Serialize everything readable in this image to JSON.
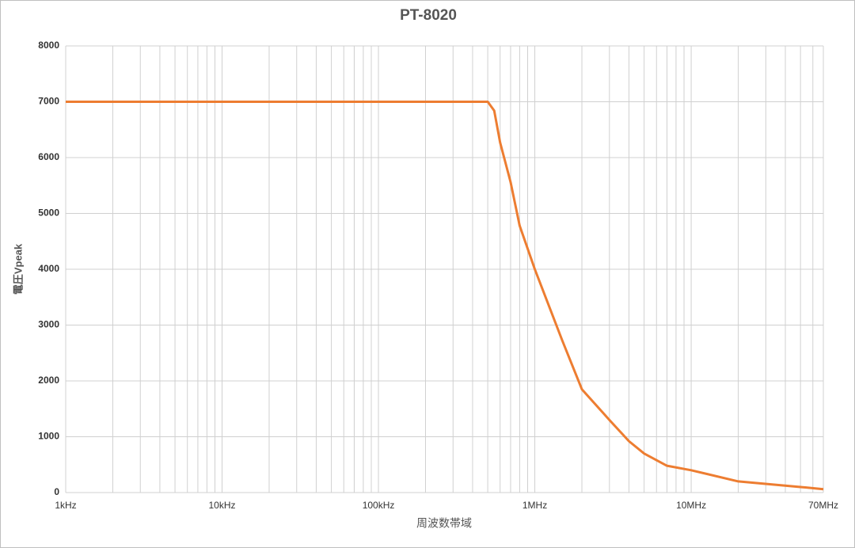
{
  "chart_data": {
    "type": "line",
    "title": "PT-8020",
    "x_label": "周波数帯域",
    "y_label": "電圧Vpeak",
    "x_log": true,
    "grid": true,
    "minor_grid": true,
    "xlim": [
      1000,
      70000000
    ],
    "ylim": [
      0,
      8000
    ],
    "xticks": [
      {
        "value": 1000,
        "label": "1kHz"
      },
      {
        "value": 10000,
        "label": "10kHz"
      },
      {
        "value": 100000,
        "label": "100kHz"
      },
      {
        "value": 1000000,
        "label": "1MHz"
      },
      {
        "value": 10000000,
        "label": "10MHz"
      },
      {
        "value": 70000000,
        "label": "70MHz"
      }
    ],
    "yticks": [
      0,
      1000,
      2000,
      3000,
      4000,
      5000,
      6000,
      7000,
      8000
    ],
    "x": [
      1000,
      500000,
      550000,
      600000,
      700000,
      800000,
      1000000,
      1500000,
      2000000,
      3000000,
      4000000,
      5000000,
      7000000,
      10000000,
      20000000,
      50000000,
      70000000
    ],
    "series": [
      {
        "name": "PT-8020",
        "color": "#ed7d31",
        "values": [
          7000,
          7000,
          6840,
          6270,
          5560,
          4780,
          4000,
          2720,
          1850,
          1300,
          920,
          700,
          480,
          400,
          200,
          100,
          60
        ]
      }
    ]
  }
}
